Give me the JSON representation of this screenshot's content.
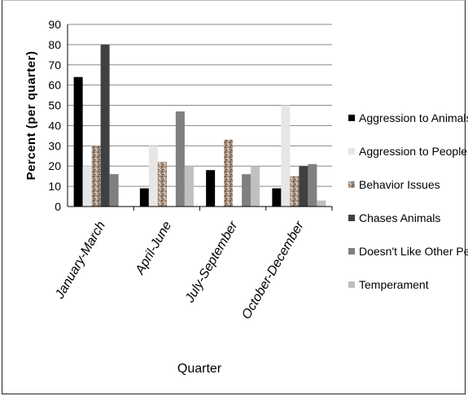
{
  "chart_data": {
    "type": "bar",
    "title": "",
    "xlabel": "Quarter",
    "ylabel": "Percent (per quarter)",
    "ylim": [
      0,
      90
    ],
    "yticks": [
      0,
      10,
      20,
      30,
      40,
      50,
      60,
      70,
      80,
      90
    ],
    "grid": true,
    "legend_position": "right",
    "categories": [
      "January-March",
      "April-June",
      "July-September",
      "October-December"
    ],
    "series": [
      {
        "name": "Aggression to Animals",
        "color": "#000000",
        "values": [
          64,
          9,
          18,
          9
        ]
      },
      {
        "name": "Aggression to People",
        "color": "#e6e6e6",
        "values": [
          20,
          30,
          0,
          50
        ]
      },
      {
        "name": "Behavior Issues",
        "color": "#a08a78",
        "pattern": "granite",
        "values": [
          30,
          22,
          33,
          15
        ]
      },
      {
        "name": "Chases Animals",
        "color": "#404040",
        "values": [
          80,
          0,
          0,
          20
        ]
      },
      {
        "name": "Doesn't Like Other Pets",
        "color": "#808080",
        "values": [
          16,
          47,
          16,
          21
        ]
      },
      {
        "name": "Temperament",
        "color": "#c0c0c0",
        "values": [
          0,
          20,
          20,
          3
        ]
      }
    ]
  }
}
